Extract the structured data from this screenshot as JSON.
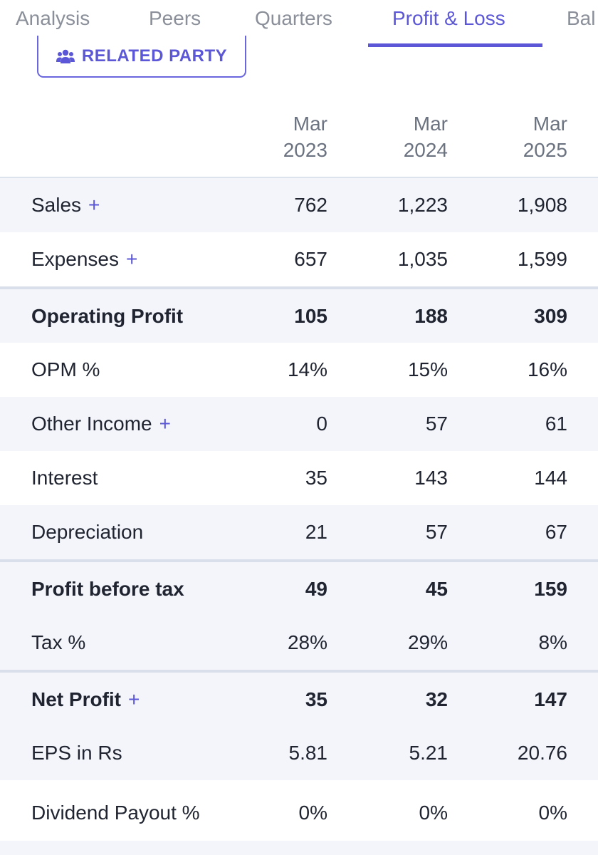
{
  "tabs": [
    {
      "label": "Analysis"
    },
    {
      "label": "Peers"
    },
    {
      "label": "Quarters"
    },
    {
      "label": "Profit & Loss",
      "active": true
    },
    {
      "label": "Bal"
    }
  ],
  "related_party": {
    "label": "RELATED PARTY",
    "icon": "users-icon"
  },
  "columns": [
    {
      "line1": "Mar",
      "line2": "2023"
    },
    {
      "line1": "Mar",
      "line2": "2024"
    },
    {
      "line1": "Mar",
      "line2": "2025"
    }
  ],
  "rows": [
    {
      "label": "Sales",
      "expandable": true,
      "values": [
        "762",
        "1,223",
        "1,908"
      ]
    },
    {
      "label": "Expenses",
      "expandable": true,
      "values": [
        "657",
        "1,035",
        "1,599"
      ]
    },
    {
      "label": "Operating Profit",
      "bold": true,
      "values": [
        "105",
        "188",
        "309"
      ]
    },
    {
      "label": "OPM %",
      "values": [
        "14%",
        "15%",
        "16%"
      ]
    },
    {
      "label": "Other Income",
      "expandable": true,
      "values": [
        "0",
        "57",
        "61"
      ]
    },
    {
      "label": "Interest",
      "values": [
        "35",
        "143",
        "144"
      ]
    },
    {
      "label": "Depreciation",
      "values": [
        "21",
        "57",
        "67"
      ]
    },
    {
      "label": "Profit before tax",
      "bold": true,
      "values": [
        "49",
        "45",
        "159"
      ]
    },
    {
      "label": "Tax %",
      "values": [
        "28%",
        "29%",
        "8%"
      ]
    },
    {
      "label": "Net Profit",
      "bold": true,
      "expandable": true,
      "values": [
        "35",
        "32",
        "147"
      ]
    },
    {
      "label": "EPS in Rs",
      "values": [
        "5.81",
        "5.21",
        "20.76"
      ]
    },
    {
      "label": "Dividend Payout %",
      "values": [
        "0%",
        "0%",
        "0%"
      ]
    }
  ],
  "plus_symbol": "+",
  "colors": {
    "accent": "#5b57d6",
    "row_shade": "#f3f5fa",
    "muted_text": "#8a8f99"
  }
}
